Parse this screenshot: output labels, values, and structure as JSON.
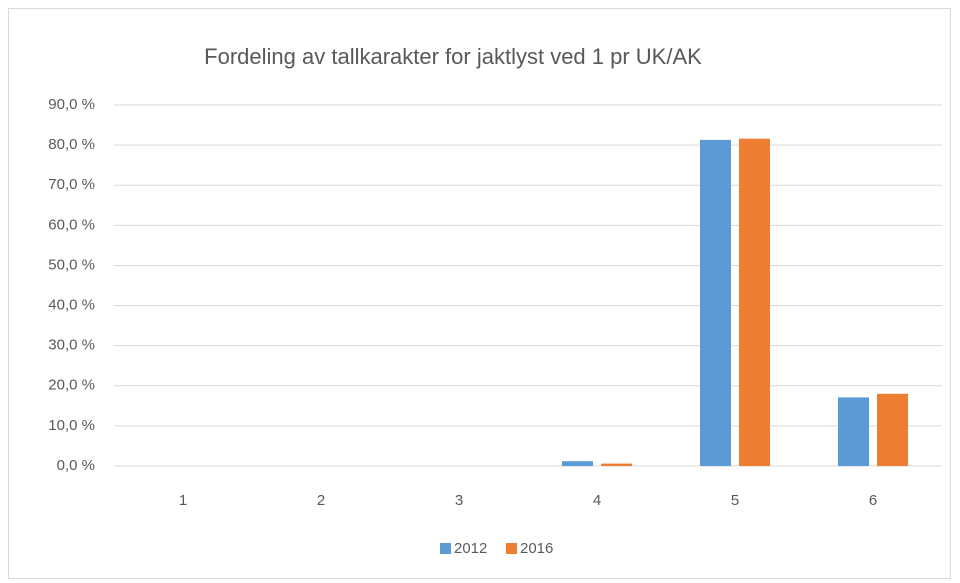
{
  "chart_data": {
    "type": "bar",
    "title": "Fordeling av tallkarakter for jaktlyst ved 1 pr UK/AK",
    "categories": [
      "1",
      "2",
      "3",
      "4",
      "5",
      "6"
    ],
    "series": [
      {
        "name": "2012",
        "color": "#5b9bd5",
        "values": [
          0,
          0,
          0,
          1.2,
          81.3,
          17.1
        ]
      },
      {
        "name": "2016",
        "color": "#ed7d31",
        "values": [
          0,
          0,
          0,
          0.6,
          81.6,
          18.0
        ]
      }
    ],
    "ylim": [
      0,
      90
    ],
    "yticks": [
      {
        "value": 0,
        "label": "0,0 %"
      },
      {
        "value": 10,
        "label": "10,0 %"
      },
      {
        "value": 20,
        "label": "20,0 %"
      },
      {
        "value": 30,
        "label": "30,0 %"
      },
      {
        "value": 40,
        "label": "40,0 %"
      },
      {
        "value": 50,
        "label": "50,0 %"
      },
      {
        "value": 60,
        "label": "60,0 %"
      },
      {
        "value": 70,
        "label": "70,0 %"
      },
      {
        "value": 80,
        "label": "80,0 %"
      },
      {
        "value": 90,
        "label": "90,0 %"
      }
    ],
    "grid": true,
    "legend": "bottom"
  }
}
